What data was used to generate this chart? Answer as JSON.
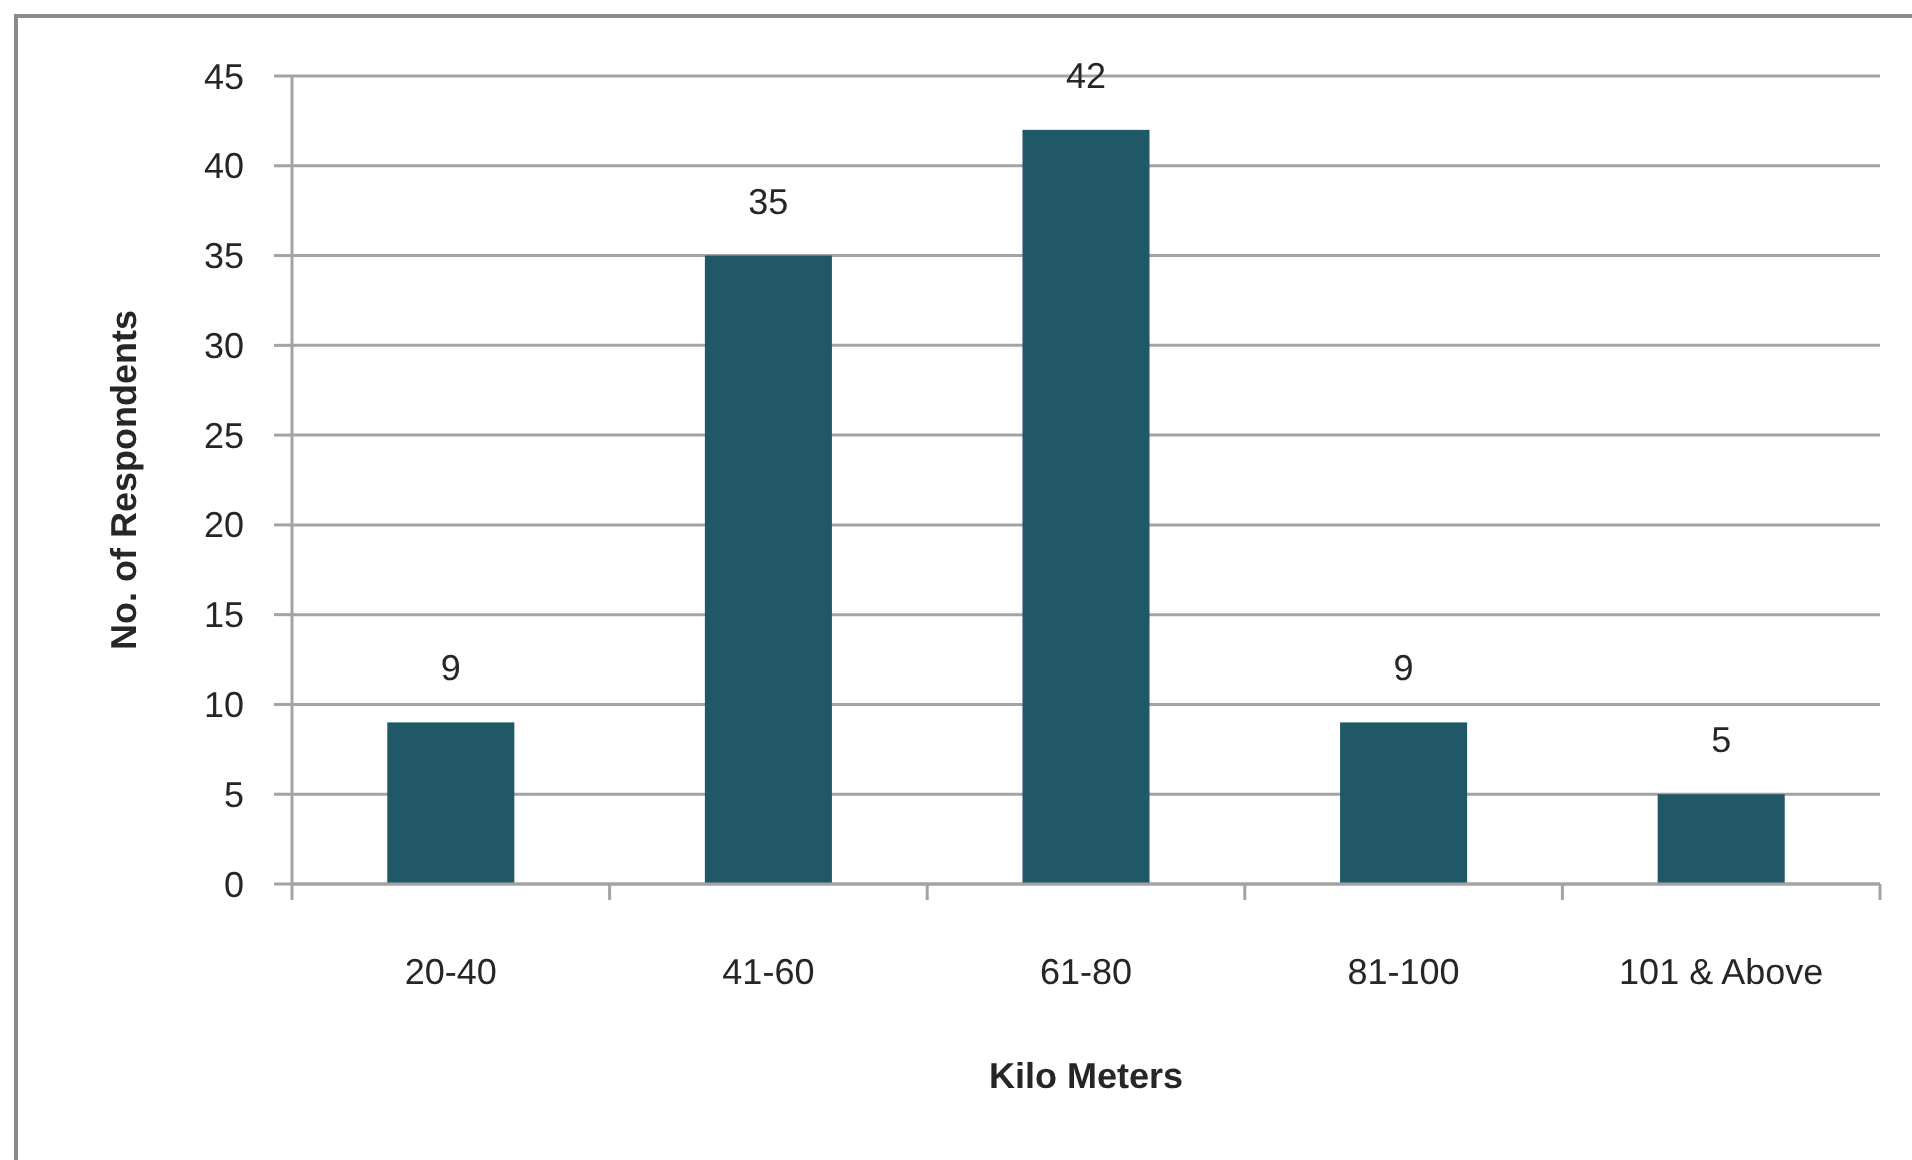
{
  "chart_data": {
    "type": "bar",
    "categories": [
      "20-40",
      "41-60",
      "61-80",
      "81-100",
      "101 & Above"
    ],
    "values": [
      9,
      35,
      42,
      9,
      5
    ],
    "color": "#215868",
    "xlabel": "Kilo Meters",
    "ylabel": "No. of Respondents",
    "ylim": [
      0,
      45
    ],
    "yticks": [
      0,
      5,
      10,
      15,
      20,
      25,
      30,
      35,
      40,
      45
    ],
    "grid": "y",
    "data_labels": true
  }
}
